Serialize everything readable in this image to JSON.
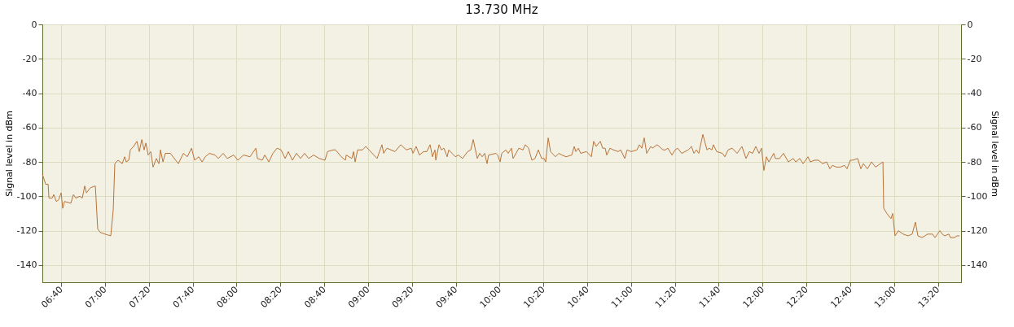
{
  "chart_data": {
    "type": "line",
    "title": "13.730 MHz",
    "ylabel": "Signal level in dBm",
    "y2label": "Signal level in dBm",
    "xlim": [
      6.524,
      13.509
    ],
    "ylim": [
      -150,
      0
    ],
    "y2lim": [
      -150,
      0
    ],
    "xticks": [
      {
        "value": 6.6667,
        "label": "06:40"
      },
      {
        "value": 7.0,
        "label": "07:00"
      },
      {
        "value": 7.3333,
        "label": "07:20"
      },
      {
        "value": 7.6667,
        "label": "07:40"
      },
      {
        "value": 8.0,
        "label": "08:00"
      },
      {
        "value": 8.3333,
        "label": "08:20"
      },
      {
        "value": 8.6667,
        "label": "08:40"
      },
      {
        "value": 9.0,
        "label": "09:00"
      },
      {
        "value": 9.3333,
        "label": "09:20"
      },
      {
        "value": 9.6667,
        "label": "09:40"
      },
      {
        "value": 10.0,
        "label": "10:00"
      },
      {
        "value": 10.3333,
        "label": "10:20"
      },
      {
        "value": 10.6667,
        "label": "10:40"
      },
      {
        "value": 11.0,
        "label": "11:00"
      },
      {
        "value": 11.3333,
        "label": "11:20"
      },
      {
        "value": 11.6667,
        "label": "11:40"
      },
      {
        "value": 12.0,
        "label": "12:00"
      },
      {
        "value": 12.3333,
        "label": "12:20"
      },
      {
        "value": 12.6667,
        "label": "12:40"
      },
      {
        "value": 13.0,
        "label": "13:00"
      },
      {
        "value": 13.3333,
        "label": "13:20"
      }
    ],
    "yticks": [
      0,
      -20,
      -40,
      -60,
      -80,
      -100,
      -120,
      -140
    ],
    "y2ticks": [
      0,
      -20,
      -40,
      -60,
      -80,
      -100,
      -120,
      -140
    ],
    "grid": true,
    "line_style": "solid",
    "marker": "none",
    "series": [
      {
        "color": "#b8733a",
        "x": [
          6.524,
          6.549,
          6.568,
          6.574,
          6.599,
          6.611,
          6.63,
          6.648,
          6.667,
          6.679,
          6.692,
          6.741,
          6.76,
          6.778,
          6.809,
          6.828,
          6.846,
          6.859,
          6.89,
          6.927,
          6.945,
          6.964,
          7.001,
          7.044,
          7.063,
          7.075,
          7.1,
          7.131,
          7.15,
          7.162,
          7.181,
          7.193,
          7.218,
          7.243,
          7.261,
          7.28,
          7.298,
          7.311,
          7.329,
          7.348,
          7.366,
          7.391,
          7.41,
          7.422,
          7.441,
          7.459,
          7.497,
          7.558,
          7.596,
          7.626,
          7.658,
          7.682,
          7.713,
          7.738,
          7.763,
          7.794,
          7.837,
          7.862,
          7.899,
          7.93,
          7.979,
          8.01,
          8.054,
          8.103,
          8.147,
          8.159,
          8.196,
          8.215,
          8.246,
          8.277,
          8.308,
          8.339,
          8.37,
          8.394,
          8.425,
          8.456,
          8.487,
          8.518,
          8.549,
          8.586,
          8.63,
          8.673,
          8.692,
          8.735,
          8.753,
          8.797,
          8.828,
          8.834,
          8.877,
          8.89,
          8.902,
          8.921,
          8.958,
          8.983,
          9.02,
          9.069,
          9.106,
          9.119,
          9.144,
          9.205,
          9.249,
          9.292,
          9.329,
          9.342,
          9.366,
          9.391,
          9.422,
          9.447,
          9.472,
          9.49,
          9.509,
          9.515,
          9.54,
          9.558,
          9.577,
          9.602,
          9.614,
          9.664,
          9.688,
          9.719,
          9.757,
          9.781,
          9.8,
          9.831,
          9.849,
          9.868,
          9.887,
          9.905,
          9.917,
          9.973,
          9.986,
          10.004,
          10.017,
          10.048,
          10.066,
          10.091,
          10.103,
          10.147,
          10.178,
          10.196,
          10.221,
          10.246,
          10.27,
          10.295,
          10.32,
          10.339,
          10.351,
          10.37,
          10.388,
          10.425,
          10.45,
          10.475,
          10.506,
          10.549,
          10.568,
          10.58,
          10.599,
          10.617,
          10.661,
          10.698,
          10.716,
          10.735,
          10.766,
          10.784,
          10.803,
          10.815,
          10.84,
          10.865,
          10.902,
          10.921,
          10.952,
          10.97,
          11.001,
          11.045,
          11.063,
          11.082,
          11.1,
          11.119,
          11.15,
          11.162,
          11.199,
          11.243,
          11.261,
          11.28,
          11.311,
          11.335,
          11.354,
          11.385,
          11.435,
          11.459,
          11.478,
          11.496,
          11.515,
          11.546,
          11.577,
          11.595,
          11.614,
          11.626,
          11.651,
          11.695,
          11.713,
          11.738,
          11.769,
          11.806,
          11.843,
          11.874,
          11.899,
          11.924,
          11.948,
          11.973,
          11.992,
          12.01,
          12.029,
          12.048,
          12.085,
          12.097,
          12.128,
          12.159,
          12.196,
          12.233,
          12.252,
          12.283,
          12.308,
          12.345,
          12.363,
          12.394,
          12.425,
          12.456,
          12.487,
          12.512,
          12.531,
          12.562,
          12.592,
          12.623,
          12.642,
          12.667,
          12.685,
          12.723,
          12.747,
          12.766,
          12.797,
          12.828,
          12.859,
          12.915,
          12.921,
          12.945,
          12.976,
          12.989,
          13.007,
          13.032,
          13.069,
          13.106,
          13.137,
          13.162,
          13.181,
          13.212,
          13.255,
          13.292,
          13.311,
          13.348,
          13.366,
          13.385,
          13.416,
          13.428,
          13.459,
          13.478,
          13.497
        ],
        "values": [
          -87,
          -93,
          -93,
          -101,
          -101,
          -99,
          -103,
          -102,
          -98,
          -107,
          -103,
          -104,
          -99,
          -101,
          -100,
          -101,
          -94,
          -98,
          -95,
          -94,
          -119,
          -121,
          -122,
          -123,
          -108,
          -81,
          -79,
          -81,
          -77,
          -80,
          -79,
          -73,
          -71,
          -68,
          -74,
          -67,
          -73,
          -69,
          -76,
          -74,
          -83,
          -78,
          -81,
          -73,
          -80,
          -75,
          -75,
          -81,
          -75,
          -77,
          -72,
          -79,
          -77,
          -80,
          -77,
          -75,
          -76,
          -78,
          -75,
          -78,
          -76,
          -79,
          -76,
          -77,
          -72,
          -78,
          -79,
          -76,
          -80,
          -75,
          -72,
          -73,
          -78,
          -74,
          -79,
          -75,
          -78,
          -75,
          -78,
          -76,
          -78,
          -79,
          -74,
          -73,
          -73,
          -77,
          -79,
          -76,
          -78,
          -74,
          -80,
          -73,
          -73,
          -71,
          -74,
          -78,
          -70,
          -75,
          -72,
          -74,
          -70,
          -73,
          -72,
          -75,
          -71,
          -76,
          -74,
          -74,
          -70,
          -77,
          -73,
          -79,
          -70,
          -73,
          -72,
          -77,
          -73,
          -77,
          -76,
          -78,
          -74,
          -73,
          -67,
          -78,
          -75,
          -77,
          -75,
          -81,
          -76,
          -75,
          -76,
          -80,
          -75,
          -73,
          -75,
          -72,
          -78,
          -72,
          -73,
          -70,
          -72,
          -79,
          -78,
          -73,
          -78,
          -78,
          -80,
          -66,
          -74,
          -77,
          -75,
          -76,
          -77,
          -76,
          -71,
          -74,
          -72,
          -75,
          -74,
          -77,
          -68,
          -71,
          -68,
          -72,
          -72,
          -76,
          -72,
          -73,
          -74,
          -73,
          -78,
          -73,
          -74,
          -73,
          -70,
          -72,
          -66,
          -75,
          -71,
          -72,
          -70,
          -73,
          -73,
          -72,
          -76,
          -73,
          -72,
          -75,
          -73,
          -71,
          -75,
          -73,
          -75,
          -64,
          -73,
          -72,
          -73,
          -70,
          -74,
          -75,
          -77,
          -73,
          -72,
          -75,
          -71,
          -78,
          -74,
          -75,
          -71,
          -75,
          -72,
          -85,
          -77,
          -80,
          -75,
          -78,
          -78,
          -75,
          -80,
          -78,
          -80,
          -78,
          -81,
          -77,
          -80,
          -79,
          -79,
          -81,
          -80,
          -84,
          -82,
          -83,
          -83,
          -82,
          -84,
          -79,
          -79,
          -78,
          -84,
          -81,
          -84,
          -80,
          -83,
          -80,
          -107,
          -110,
          -113,
          -110,
          -123,
          -120,
          -122,
          -123,
          -122,
          -115,
          -123,
          -124,
          -122,
          -122,
          -124,
          -120,
          -122,
          -123,
          -122,
          -124,
          -124,
          -123,
          -123
        ]
      }
    ]
  }
}
